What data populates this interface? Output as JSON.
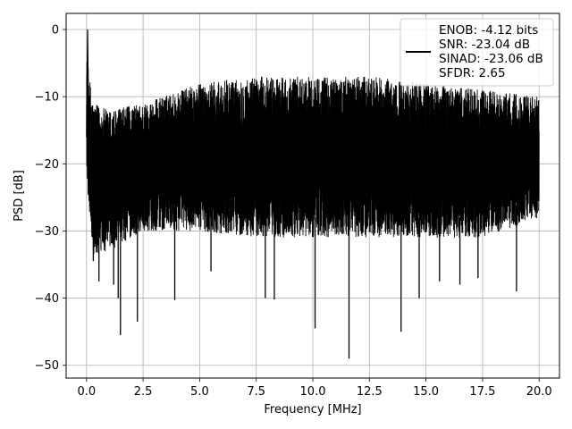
{
  "chart_data": {
    "type": "line",
    "title": "",
    "xlabel": "Frequency [MHz]",
    "ylabel": "PSD [dB]",
    "xlim": [
      -0.9,
      20.9
    ],
    "ylim": [
      -51.9,
      2.4
    ],
    "x_ticks": [
      0.0,
      2.5,
      5.0,
      7.5,
      10.0,
      12.5,
      15.0,
      17.5,
      20.0
    ],
    "x_tick_labels": [
      "0.0",
      "2.5",
      "5.0",
      "7.5",
      "10.0",
      "12.5",
      "15.0",
      "17.5",
      "20.0"
    ],
    "y_ticks": [
      0,
      -10,
      -20,
      -30,
      -40,
      -50
    ],
    "y_tick_labels": [
      "0",
      "−10",
      "−20",
      "−30",
      "−40",
      "−50"
    ],
    "grid": true,
    "legend_position": "top-right",
    "series": [
      {
        "legend_lines": [
          "ENOB: -4.12 bits",
          "SNR: -23.04 dB",
          "SINAD: -23.06 dB",
          "SFDR: 2.65"
        ],
        "color": "#000000",
        "x_start": 0.0,
        "x_end": 20.0,
        "peak": {
          "x": 0.05,
          "y": 0
        },
        "envelope": [
          {
            "x": 0.0,
            "upper": -4,
            "lower": -22
          },
          {
            "x": 0.3,
            "upper": -11,
            "lower": -34
          },
          {
            "x": 1.0,
            "upper": -12,
            "lower": -33
          },
          {
            "x": 2.5,
            "upper": -11,
            "lower": -30
          },
          {
            "x": 5.0,
            "upper": -8,
            "lower": -30
          },
          {
            "x": 7.5,
            "upper": -7,
            "lower": -31
          },
          {
            "x": 10.0,
            "upper": -7,
            "lower": -31
          },
          {
            "x": 12.5,
            "upper": -7,
            "lower": -31
          },
          {
            "x": 15.0,
            "upper": -8,
            "lower": -31
          },
          {
            "x": 17.5,
            "upper": -9,
            "lower": -31
          },
          {
            "x": 20.0,
            "upper": -10,
            "lower": -28
          }
        ],
        "dips": [
          {
            "x": 0.3,
            "y": -34.5
          },
          {
            "x": 0.55,
            "y": -37.5
          },
          {
            "x": 1.2,
            "y": -38
          },
          {
            "x": 1.4,
            "y": -40
          },
          {
            "x": 1.5,
            "y": -45.5
          },
          {
            "x": 2.25,
            "y": -43.5
          },
          {
            "x": 3.9,
            "y": -40.3
          },
          {
            "x": 5.5,
            "y": -36
          },
          {
            "x": 7.9,
            "y": -40
          },
          {
            "x": 8.3,
            "y": -40.2
          },
          {
            "x": 10.1,
            "y": -44.5
          },
          {
            "x": 11.6,
            "y": -49
          },
          {
            "x": 13.9,
            "y": -45
          },
          {
            "x": 14.7,
            "y": -40
          },
          {
            "x": 15.6,
            "y": -37.5
          },
          {
            "x": 16.5,
            "y": -38
          },
          {
            "x": 17.3,
            "y": -37
          },
          {
            "x": 19.0,
            "y": -39
          }
        ]
      }
    ]
  }
}
